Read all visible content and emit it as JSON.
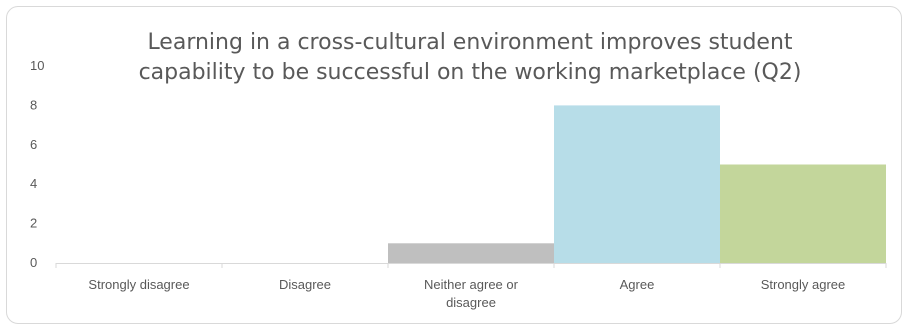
{
  "chart_data": {
    "type": "bar",
    "title_lines": [
      "Learning in a cross-cultural environment improves student",
      "capability to be successful on the working marketplace (Q2)"
    ],
    "categories": [
      "Strongly disagree",
      "Disagree",
      "Neither agree or disagree",
      "Agree",
      "Strongly agree"
    ],
    "category_label_lines": [
      [
        "Strongly disagree"
      ],
      [
        "Disagree"
      ],
      [
        "Neither agree or",
        "disagree"
      ],
      [
        "Agree"
      ],
      [
        "Strongly agree"
      ]
    ],
    "values": [
      0,
      0,
      1,
      8,
      5
    ],
    "bar_colors": [
      "#a6a6a6",
      "#a6a6a6",
      "#bfbfbf",
      "#b7dde8",
      "#c3d69b"
    ],
    "ylim": [
      0,
      10
    ],
    "yticks": [
      0,
      2,
      4,
      6,
      8,
      10
    ],
    "xlabel": "",
    "ylabel": "",
    "grid": false,
    "legend": "none"
  }
}
